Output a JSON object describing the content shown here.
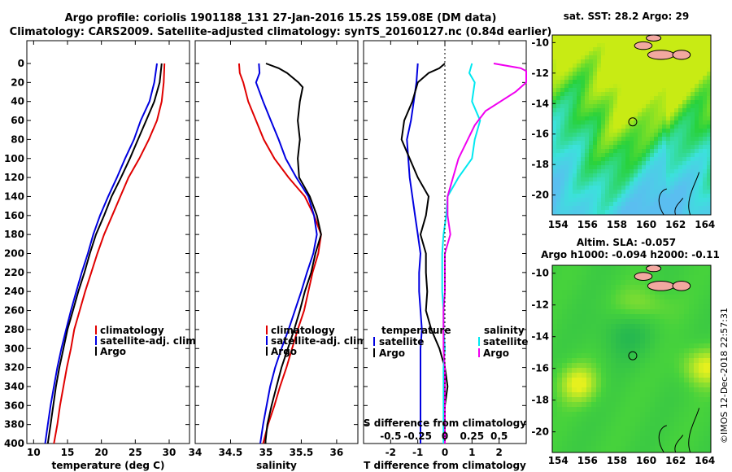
{
  "header": {
    "title_line1": "Argo profile: coriolis 1901188_131 27-Jan-2016 15.2S 159.08E (DM data)",
    "title_line2": "Climatology: CARS2009. Satellite-adjusted climatology: synTS_20160127.nc (0.84d earlier)"
  },
  "timestamp": "©IMOS 12-Dec-2018 22:57:31",
  "colors": {
    "clim": "#e00000",
    "sat": "#0000e0",
    "argo": "#000000",
    "sat_s": "#00e8f0",
    "argo_s": "#f000f0"
  },
  "chart_data": [
    {
      "id": "temperature",
      "type": "line",
      "xlabel": "temperature (deg C)",
      "ylabel": "",
      "xlim": [
        9,
        33
      ],
      "ylim": [
        400,
        0
      ],
      "xticks": [
        10,
        15,
        20,
        25,
        30
      ],
      "yticks": [
        0,
        20,
        40,
        60,
        80,
        100,
        120,
        140,
        160,
        180,
        200,
        220,
        240,
        260,
        280,
        300,
        320,
        340,
        360,
        380,
        400
      ],
      "legend": [
        "climatology",
        "satellite-adj. clim.",
        "Argo"
      ],
      "series": [
        {
          "name": "climatology",
          "color": "clim",
          "points": [
            [
              29.3,
              0
            ],
            [
              29.2,
              20
            ],
            [
              28.9,
              40
            ],
            [
              28.2,
              60
            ],
            [
              27.0,
              80
            ],
            [
              25.6,
              100
            ],
            [
              24.0,
              120
            ],
            [
              22.8,
              140
            ],
            [
              21.6,
              160
            ],
            [
              20.4,
              180
            ],
            [
              19.4,
              200
            ],
            [
              18.5,
              220
            ],
            [
              17.6,
              240
            ],
            [
              16.8,
              260
            ],
            [
              16.0,
              280
            ],
            [
              15.5,
              300
            ],
            [
              14.9,
              320
            ],
            [
              14.4,
              340
            ],
            [
              13.9,
              360
            ],
            [
              13.5,
              380
            ],
            [
              13.0,
              400
            ]
          ]
        },
        {
          "name": "satellite-adj. clim.",
          "color": "sat",
          "points": [
            [
              28.2,
              0
            ],
            [
              27.8,
              20
            ],
            [
              27.1,
              40
            ],
            [
              25.8,
              60
            ],
            [
              24.8,
              80
            ],
            [
              23.5,
              100
            ],
            [
              22.3,
              120
            ],
            [
              21.0,
              140
            ],
            [
              19.8,
              160
            ],
            [
              18.8,
              180
            ],
            [
              18.0,
              200
            ],
            [
              17.1,
              220
            ],
            [
              16.3,
              240
            ],
            [
              15.5,
              260
            ],
            [
              14.8,
              280
            ],
            [
              14.1,
              300
            ],
            [
              13.5,
              320
            ],
            [
              13.0,
              340
            ],
            [
              12.5,
              360
            ],
            [
              12.1,
              380
            ],
            [
              11.7,
              400
            ]
          ]
        },
        {
          "name": "Argo",
          "color": "argo",
          "points": [
            [
              28.9,
              0
            ],
            [
              28.6,
              20
            ],
            [
              27.8,
              40
            ],
            [
              26.6,
              60
            ],
            [
              25.4,
              80
            ],
            [
              24.2,
              100
            ],
            [
              22.9,
              120
            ],
            [
              21.5,
              140
            ],
            [
              20.4,
              160
            ],
            [
              19.2,
              180
            ],
            [
              18.3,
              200
            ],
            [
              17.5,
              220
            ],
            [
              16.6,
              240
            ],
            [
              15.8,
              260
            ],
            [
              15.0,
              280
            ],
            [
              14.4,
              300
            ],
            [
              13.8,
              320
            ],
            [
              13.3,
              340
            ],
            [
              12.9,
              360
            ],
            [
              12.5,
              380
            ],
            [
              12.1,
              400
            ]
          ]
        }
      ]
    },
    {
      "id": "salinity",
      "type": "line",
      "xlabel": "salinity",
      "ylabel": "",
      "xlim": [
        34,
        36.3
      ],
      "ylim": [
        400,
        0
      ],
      "xticks": [
        34,
        34.5,
        35,
        35.5,
        36
      ],
      "legend": [
        "climatology",
        "satellite-adj. clim.",
        "Argo"
      ],
      "series": [
        {
          "name": "climatology",
          "color": "clim",
          "points": [
            [
              34.62,
              0
            ],
            [
              34.63,
              10
            ],
            [
              34.68,
              20
            ],
            [
              34.75,
              40
            ],
            [
              34.86,
              60
            ],
            [
              34.97,
              80
            ],
            [
              35.12,
              100
            ],
            [
              35.32,
              120
            ],
            [
              35.55,
              140
            ],
            [
              35.68,
              160
            ],
            [
              35.78,
              180
            ],
            [
              35.74,
              200
            ],
            [
              35.66,
              220
            ],
            [
              35.6,
              240
            ],
            [
              35.54,
              260
            ],
            [
              35.45,
              280
            ],
            [
              35.37,
              300
            ],
            [
              35.29,
              320
            ],
            [
              35.2,
              340
            ],
            [
              35.12,
              360
            ],
            [
              35.03,
              380
            ],
            [
              34.96,
              400
            ]
          ]
        },
        {
          "name": "satellite-adj. clim.",
          "color": "sat",
          "points": [
            [
              34.9,
              0
            ],
            [
              34.91,
              10
            ],
            [
              34.86,
              20
            ],
            [
              34.96,
              40
            ],
            [
              35.07,
              60
            ],
            [
              35.18,
              80
            ],
            [
              35.28,
              100
            ],
            [
              35.43,
              120
            ],
            [
              35.6,
              140
            ],
            [
              35.68,
              160
            ],
            [
              35.72,
              180
            ],
            [
              35.67,
              200
            ],
            [
              35.58,
              220
            ],
            [
              35.5,
              240
            ],
            [
              35.41,
              260
            ],
            [
              35.32,
              280
            ],
            [
              35.22,
              300
            ],
            [
              35.13,
              320
            ],
            [
              35.06,
              340
            ],
            [
              35.01,
              360
            ],
            [
              34.96,
              380
            ],
            [
              34.92,
              400
            ]
          ]
        },
        {
          "name": "Argo",
          "color": "argo",
          "points": [
            [
              35.0,
              0
            ],
            [
              35.18,
              5
            ],
            [
              35.3,
              10
            ],
            [
              35.46,
              20
            ],
            [
              35.52,
              25
            ],
            [
              35.48,
              40
            ],
            [
              35.45,
              60
            ],
            [
              35.48,
              80
            ],
            [
              35.45,
              100
            ],
            [
              35.47,
              120
            ],
            [
              35.62,
              140
            ],
            [
              35.72,
              160
            ],
            [
              35.78,
              180
            ],
            [
              35.7,
              200
            ],
            [
              35.64,
              220
            ],
            [
              35.55,
              240
            ],
            [
              35.48,
              260
            ],
            [
              35.4,
              280
            ],
            [
              35.31,
              300
            ],
            [
              35.22,
              320
            ],
            [
              35.15,
              340
            ],
            [
              35.08,
              360
            ],
            [
              35.02,
              380
            ],
            [
              34.99,
              400
            ]
          ]
        }
      ]
    },
    {
      "id": "difference",
      "type": "line",
      "xlabel": "T difference from climatology",
      "x2label": "S difference from climatology",
      "ylabel": "",
      "xlim": [
        -3,
        3
      ],
      "x2lim": [
        -0.75,
        0.75
      ],
      "ylim": [
        400,
        0
      ],
      "xticks": [
        -2,
        -1,
        0,
        1,
        2
      ],
      "x2ticks": [
        "-0.5",
        "-0.25",
        "0",
        "0.25",
        "0.5"
      ],
      "legend_temperature_title": "temperature",
      "legend_salinity_title": "salinity",
      "legend_temperature": [
        "satellite",
        "Argo"
      ],
      "legend_salinity": [
        "satellite",
        "Argo"
      ],
      "series": [
        {
          "name": "T satellite",
          "color": "sat",
          "points": [
            [
              -1.0,
              0
            ],
            [
              -1.05,
              20
            ],
            [
              -1.15,
              40
            ],
            [
              -1.25,
              60
            ],
            [
              -1.4,
              80
            ],
            [
              -1.35,
              100
            ],
            [
              -1.3,
              120
            ],
            [
              -1.2,
              140
            ],
            [
              -1.1,
              160
            ],
            [
              -1.0,
              180
            ],
            [
              -0.9,
              200
            ],
            [
              -0.95,
              220
            ],
            [
              -0.95,
              240
            ],
            [
              -0.9,
              260
            ],
            [
              -0.85,
              280
            ],
            [
              -0.9,
              300
            ],
            [
              -0.9,
              320
            ],
            [
              -0.9,
              340
            ],
            [
              -0.9,
              360
            ],
            [
              -0.9,
              380
            ],
            [
              -0.9,
              400
            ]
          ]
        },
        {
          "name": "T Argo",
          "color": "argo",
          "points": [
            [
              0.0,
              0
            ],
            [
              -0.2,
              5
            ],
            [
              -0.6,
              10
            ],
            [
              -1.0,
              20
            ],
            [
              -1.2,
              40
            ],
            [
              -1.5,
              60
            ],
            [
              -1.6,
              80
            ],
            [
              -1.3,
              100
            ],
            [
              -1.0,
              120
            ],
            [
              -0.6,
              140
            ],
            [
              -0.7,
              160
            ],
            [
              -0.9,
              180
            ],
            [
              -0.7,
              200
            ],
            [
              -0.7,
              220
            ],
            [
              -0.65,
              240
            ],
            [
              -0.7,
              260
            ],
            [
              -0.5,
              280
            ],
            [
              -0.2,
              300
            ],
            [
              0.0,
              320
            ],
            [
              0.1,
              340
            ],
            [
              0.0,
              360
            ],
            [
              -0.05,
              380
            ],
            [
              0.0,
              400
            ]
          ]
        },
        {
          "name": "S satellite",
          "color": "sat_s",
          "points": [
            [
              1.0,
              0
            ],
            [
              0.9,
              10
            ],
            [
              1.1,
              20
            ],
            [
              1.0,
              40
            ],
            [
              1.3,
              60
            ],
            [
              1.1,
              80
            ],
            [
              1.0,
              100
            ],
            [
              0.5,
              120
            ],
            [
              0.1,
              140
            ],
            [
              0.05,
              160
            ],
            [
              -0.05,
              180
            ],
            [
              -0.1,
              200
            ],
            [
              -0.1,
              220
            ],
            [
              -0.1,
              240
            ],
            [
              -0.05,
              260
            ],
            [
              -0.05,
              280
            ],
            [
              0.0,
              300
            ],
            [
              -0.05,
              320
            ],
            [
              -0.05,
              340
            ],
            [
              -0.05,
              360
            ],
            [
              -0.05,
              380
            ],
            [
              -0.05,
              400
            ]
          ]
        },
        {
          "name": "S Argo",
          "color": "argo_s",
          "points": [
            [
              1.8,
              0
            ],
            [
              2.8,
              5
            ],
            [
              3.0,
              8
            ],
            [
              3.0,
              20
            ],
            [
              2.6,
              30
            ],
            [
              1.5,
              50
            ],
            [
              1.1,
              65
            ],
            [
              0.5,
              100
            ],
            [
              0.1,
              140
            ],
            [
              0.1,
              160
            ],
            [
              0.2,
              180
            ],
            [
              0.0,
              200
            ],
            [
              0.0,
              220
            ],
            [
              0.0,
              240
            ],
            [
              -0.05,
              260
            ],
            [
              -0.05,
              280
            ],
            [
              -0.05,
              300
            ],
            [
              0.0,
              320
            ],
            [
              0.0,
              340
            ],
            [
              0.0,
              360
            ],
            [
              0.0,
              380
            ],
            [
              0.0,
              400
            ]
          ]
        }
      ]
    },
    {
      "id": "sst_map",
      "type": "heatmap",
      "title": "sat. SST: 28.2 Argo: 29",
      "xlim": [
        153.6,
        164.4
      ],
      "ylim": [
        -21.3,
        -9.5
      ],
      "xticks": [
        154,
        156,
        158,
        160,
        162,
        164
      ],
      "yticks": [
        -10,
        -12,
        -14,
        -16,
        -18,
        -20
      ],
      "marker": [
        159.08,
        -15.2
      ]
    },
    {
      "id": "sla_map",
      "type": "heatmap",
      "title": "Altim. SLA: -0.057",
      "subtitle": "Argo h1000: -0.094 h2000: -0.11",
      "xlim": [
        153.6,
        164.4
      ],
      "ylim": [
        -21.3,
        -9.5
      ],
      "xticks": [
        154,
        156,
        158,
        160,
        162,
        164
      ],
      "yticks": [
        -10,
        -12,
        -14,
        -16,
        -18,
        -20
      ],
      "marker": [
        159.08,
        -15.2
      ]
    }
  ]
}
